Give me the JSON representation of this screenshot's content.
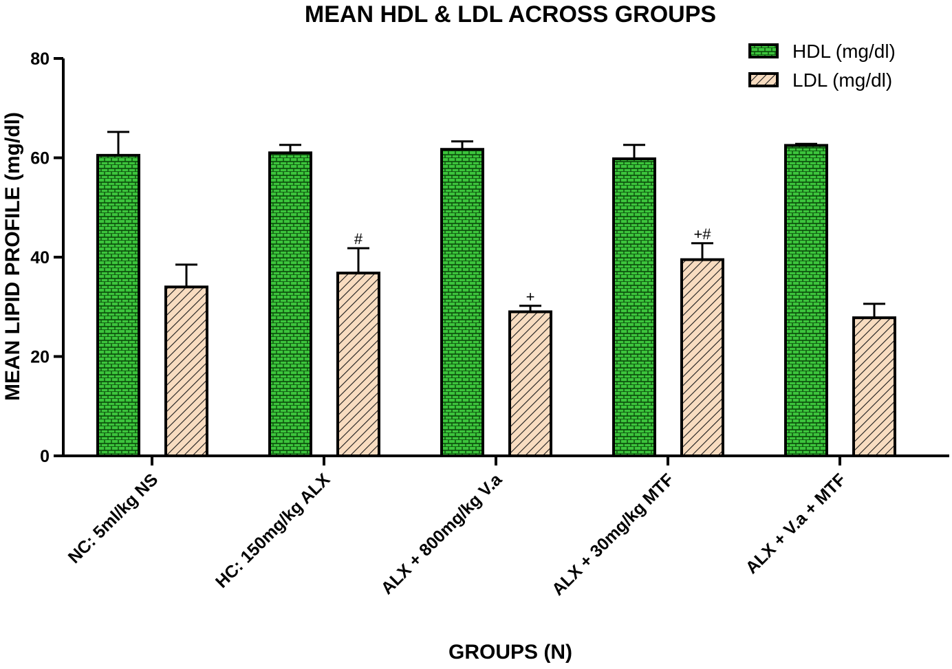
{
  "chart_data": {
    "type": "bar",
    "title": "MEAN HDL & LDL ACROSS GROUPS",
    "xlabel": "GROUPS (N)",
    "ylabel": "MEAN LIPID PROFILE (mg/dl)",
    "ylim": [
      0,
      80
    ],
    "yticks": [
      "0",
      "20",
      "40",
      "60",
      "80"
    ],
    "grid": false,
    "legend_position": "top-right",
    "categories": [
      "NC: 5ml/kg NS",
      "HC: 150mg/kg ALX",
      "ALX + 800mg/kg V.a",
      "ALX + 30mg/kg MTF",
      "ALX + V.a + MTF"
    ],
    "series": [
      {
        "name": "HDL (mg/dl)",
        "color": "#3cc43c",
        "pattern": "brick",
        "values": [
          60.5,
          61.0,
          61.7,
          59.8,
          62.5
        ],
        "errors": [
          4.7,
          1.6,
          1.6,
          2.8,
          0.3
        ],
        "annotations": [
          "",
          "",
          "",
          "",
          ""
        ]
      },
      {
        "name": "LDL (mg/dl)",
        "color": "#f8dcc0",
        "pattern": "diagonal-hatch",
        "values": [
          34.0,
          36.8,
          29.0,
          39.5,
          27.8
        ],
        "errors": [
          4.5,
          5.0,
          1.2,
          3.3,
          2.8
        ],
        "annotations": [
          "",
          "#",
          "+",
          "+#",
          ""
        ]
      }
    ]
  }
}
